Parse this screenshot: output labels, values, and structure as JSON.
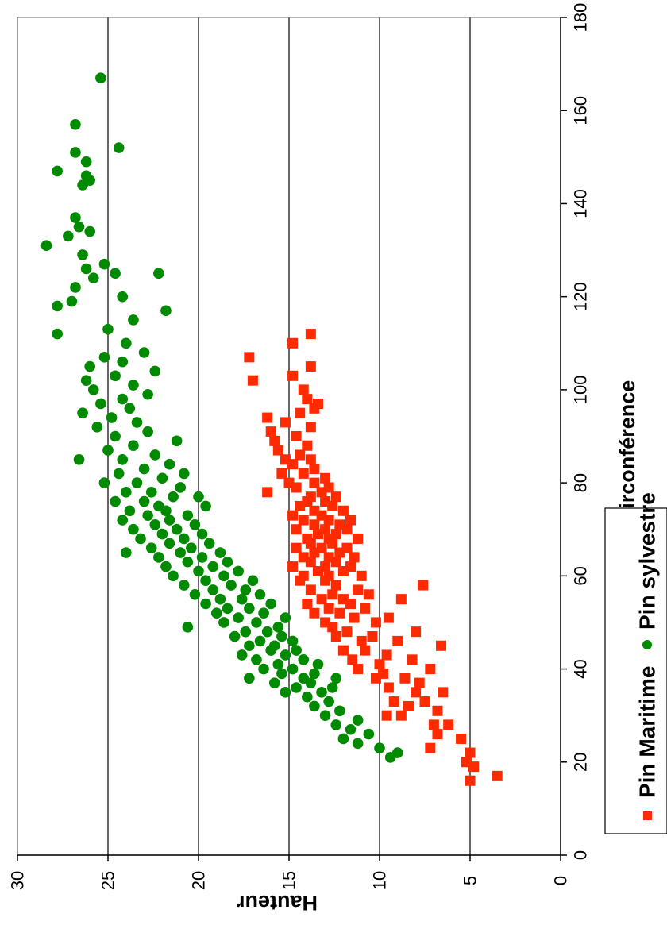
{
  "chart_data": {
    "type": "scatter",
    "orientation": "rotated-90-clockwise",
    "xlabel": "Circonférence",
    "ylabel": "Hauteur",
    "xlim": [
      0,
      180
    ],
    "ylim": [
      0,
      30
    ],
    "x_ticks": [
      0,
      20,
      40,
      60,
      80,
      100,
      120,
      140,
      160,
      180
    ],
    "y_ticks": [
      0,
      5,
      10,
      15,
      20,
      25,
      30
    ],
    "grid": "horizontal-value-lines",
    "legend_position": "right",
    "series": [
      {
        "name": "Pin Maritime",
        "marker": "square",
        "color": "#ff2a00",
        "points": [
          [
            16,
            5.0
          ],
          [
            17,
            3.5
          ],
          [
            19,
            4.8
          ],
          [
            20,
            5.2
          ],
          [
            22,
            5.0
          ],
          [
            23,
            7.2
          ],
          [
            25,
            5.5
          ],
          [
            26,
            6.8
          ],
          [
            28,
            6.2
          ],
          [
            28,
            7.0
          ],
          [
            30,
            8.8
          ],
          [
            30,
            9.6
          ],
          [
            31,
            6.8
          ],
          [
            32,
            8.4
          ],
          [
            33,
            9.2
          ],
          [
            33,
            7.5
          ],
          [
            35,
            6.5
          ],
          [
            35,
            8.0
          ],
          [
            36,
            9.5
          ],
          [
            37,
            7.8
          ],
          [
            38,
            10.2
          ],
          [
            38,
            8.6
          ],
          [
            39,
            9.8
          ],
          [
            40,
            11.2
          ],
          [
            40,
            7.2
          ],
          [
            41,
            10.0
          ],
          [
            42,
            8.2
          ],
          [
            42,
            11.5
          ],
          [
            43,
            9.6
          ],
          [
            44,
            10.8
          ],
          [
            44,
            12.0
          ],
          [
            45,
            6.6
          ],
          [
            46,
            9.0
          ],
          [
            46,
            11.0
          ],
          [
            47,
            12.4
          ],
          [
            47,
            10.4
          ],
          [
            48,
            8.0
          ],
          [
            48,
            11.8
          ],
          [
            49,
            12.6
          ],
          [
            50,
            10.2
          ],
          [
            50,
            13.0
          ],
          [
            51,
            9.5
          ],
          [
            51,
            11.4
          ],
          [
            52,
            12.2
          ],
          [
            52,
            13.6
          ],
          [
            53,
            10.8
          ],
          [
            53,
            12.8
          ],
          [
            54,
            11.6
          ],
          [
            54,
            14.0
          ],
          [
            55,
            8.8
          ],
          [
            55,
            12.0
          ],
          [
            55,
            13.2
          ],
          [
            56,
            10.6
          ],
          [
            56,
            12.6
          ],
          [
            57,
            11.2
          ],
          [
            57,
            13.8
          ],
          [
            58,
            12.4
          ],
          [
            58,
            7.6
          ],
          [
            59,
            13.0
          ],
          [
            59,
            14.4
          ],
          [
            60,
            11.0
          ],
          [
            60,
            12.8
          ],
          [
            60,
            14.2
          ],
          [
            61,
            12.0
          ],
          [
            61,
            13.4
          ],
          [
            62,
            11.6
          ],
          [
            62,
            13.0
          ],
          [
            62,
            14.8
          ],
          [
            63,
            12.4
          ],
          [
            63,
            13.8
          ],
          [
            64,
            11.4
          ],
          [
            64,
            12.8
          ],
          [
            64,
            14.2
          ],
          [
            65,
            12.2
          ],
          [
            65,
            13.6
          ],
          [
            66,
            11.8
          ],
          [
            66,
            13.2
          ],
          [
            66,
            14.6
          ],
          [
            67,
            12.6
          ],
          [
            67,
            13.8
          ],
          [
            68,
            11.2
          ],
          [
            68,
            12.8
          ],
          [
            68,
            14.0
          ],
          [
            69,
            12.4
          ],
          [
            69,
            13.4
          ],
          [
            70,
            11.8
          ],
          [
            70,
            13.0
          ],
          [
            70,
            14.6
          ],
          [
            71,
            12.2
          ],
          [
            71,
            13.6
          ],
          [
            72,
            11.6
          ],
          [
            72,
            12.8
          ],
          [
            72,
            14.2
          ],
          [
            73,
            13.2
          ],
          [
            73,
            14.8
          ],
          [
            74,
            12.0
          ],
          [
            74,
            13.6
          ],
          [
            75,
            12.6
          ],
          [
            75,
            14.4
          ],
          [
            76,
            13.0
          ],
          [
            76,
            14.0
          ],
          [
            77,
            12.4
          ],
          [
            77,
            13.8
          ],
          [
            78,
            13.2
          ],
          [
            78,
            16.2
          ],
          [
            79,
            12.8
          ],
          [
            79,
            14.6
          ],
          [
            80,
            13.6
          ],
          [
            80,
            15.0
          ],
          [
            81,
            13.0
          ],
          [
            82,
            14.2
          ],
          [
            82,
            15.4
          ],
          [
            83,
            13.6
          ],
          [
            84,
            14.8
          ],
          [
            85,
            15.2
          ],
          [
            85,
            13.8
          ],
          [
            86,
            14.4
          ],
          [
            87,
            15.6
          ],
          [
            88,
            14.0
          ],
          [
            89,
            15.8
          ],
          [
            90,
            14.6
          ],
          [
            91,
            16.0
          ],
          [
            92,
            13.8
          ],
          [
            93,
            15.2
          ],
          [
            94,
            16.2
          ],
          [
            95,
            14.4
          ],
          [
            96,
            13.6
          ],
          [
            97,
            13.4
          ],
          [
            98,
            14.0
          ],
          [
            100,
            14.2
          ],
          [
            102,
            17.0
          ],
          [
            103,
            14.8
          ],
          [
            105,
            13.8
          ],
          [
            107,
            17.2
          ],
          [
            110,
            14.8
          ],
          [
            112,
            13.8
          ]
        ]
      },
      {
        "name": "Pin sylvestre",
        "marker": "circle",
        "color": "#008a00",
        "points": [
          [
            21,
            9.4
          ],
          [
            22,
            9.0
          ],
          [
            23,
            10.0
          ],
          [
            24,
            11.2
          ],
          [
            25,
            12.0
          ],
          [
            26,
            10.6
          ],
          [
            27,
            11.6
          ],
          [
            28,
            12.4
          ],
          [
            29,
            11.2
          ],
          [
            30,
            13.0
          ],
          [
            31,
            12.2
          ],
          [
            32,
            13.6
          ],
          [
            33,
            12.8
          ],
          [
            34,
            14.0
          ],
          [
            35,
            13.2
          ],
          [
            35,
            15.2
          ],
          [
            36,
            12.6
          ],
          [
            36,
            14.6
          ],
          [
            37,
            13.8
          ],
          [
            37,
            15.8
          ],
          [
            38,
            12.4
          ],
          [
            38,
            14.2
          ],
          [
            38,
            17.2
          ],
          [
            39,
            13.6
          ],
          [
            39,
            15.4
          ],
          [
            40,
            14.8
          ],
          [
            40,
            16.4
          ],
          [
            41,
            13.4
          ],
          [
            41,
            15.6
          ],
          [
            42,
            14.2
          ],
          [
            42,
            16.8
          ],
          [
            43,
            15.2
          ],
          [
            43,
            17.6
          ],
          [
            44,
            14.6
          ],
          [
            44,
            16.0
          ],
          [
            45,
            15.8
          ],
          [
            45,
            17.2
          ],
          [
            46,
            14.8
          ],
          [
            46,
            16.6
          ],
          [
            47,
            15.4
          ],
          [
            47,
            18.0
          ],
          [
            48,
            16.2
          ],
          [
            48,
            17.4
          ],
          [
            49,
            15.6
          ],
          [
            49,
            20.6
          ],
          [
            50,
            16.8
          ],
          [
            50,
            18.6
          ],
          [
            51,
            15.2
          ],
          [
            51,
            17.8
          ],
          [
            52,
            16.4
          ],
          [
            52,
            19.0
          ],
          [
            53,
            17.2
          ],
          [
            53,
            18.4
          ],
          [
            54,
            16.0
          ],
          [
            54,
            19.6
          ],
          [
            55,
            17.6
          ],
          [
            55,
            18.8
          ],
          [
            56,
            16.6
          ],
          [
            56,
            20.2
          ],
          [
            57,
            17.4
          ],
          [
            57,
            19.2
          ],
          [
            58,
            18.2
          ],
          [
            58,
            20.8
          ],
          [
            59,
            17.0
          ],
          [
            59,
            19.6
          ],
          [
            60,
            18.6
          ],
          [
            60,
            21.4
          ],
          [
            61,
            17.8
          ],
          [
            61,
            20.0
          ],
          [
            62,
            19.2
          ],
          [
            62,
            21.8
          ],
          [
            63,
            18.4
          ],
          [
            63,
            20.6
          ],
          [
            64,
            19.8
          ],
          [
            64,
            22.2
          ],
          [
            65,
            18.8
          ],
          [
            65,
            21.0
          ],
          [
            65,
            24.0
          ],
          [
            66,
            20.4
          ],
          [
            66,
            22.6
          ],
          [
            67,
            19.4
          ],
          [
            67,
            21.6
          ],
          [
            68,
            20.8
          ],
          [
            68,
            23.2
          ],
          [
            69,
            19.8
          ],
          [
            69,
            22.0
          ],
          [
            70,
            21.2
          ],
          [
            70,
            23.6
          ],
          [
            71,
            20.2
          ],
          [
            71,
            22.4
          ],
          [
            72,
            21.6
          ],
          [
            72,
            24.2
          ],
          [
            73,
            20.6
          ],
          [
            73,
            22.8
          ],
          [
            74,
            21.8
          ],
          [
            74,
            23.8
          ],
          [
            75,
            19.6
          ],
          [
            75,
            22.2
          ],
          [
            76,
            23.0
          ],
          [
            76,
            24.6
          ],
          [
            77,
            21.4
          ],
          [
            77,
            20.0
          ],
          [
            78,
            22.6
          ],
          [
            78,
            24.0
          ],
          [
            79,
            21.0
          ],
          [
            80,
            23.4
          ],
          [
            80,
            25.2
          ],
          [
            81,
            22.0
          ],
          [
            82,
            24.4
          ],
          [
            82,
            20.8
          ],
          [
            83,
            23.0
          ],
          [
            84,
            21.6
          ],
          [
            85,
            24.2
          ],
          [
            85,
            26.6
          ],
          [
            86,
            22.4
          ],
          [
            87,
            25.0
          ],
          [
            88,
            23.6
          ],
          [
            89,
            21.2
          ],
          [
            90,
            24.6
          ],
          [
            91,
            22.8
          ],
          [
            92,
            25.6
          ],
          [
            93,
            23.4
          ],
          [
            94,
            24.8
          ],
          [
            95,
            26.4
          ],
          [
            96,
            23.8
          ],
          [
            97,
            25.4
          ],
          [
            98,
            24.2
          ],
          [
            99,
            22.8
          ],
          [
            100,
            25.8
          ],
          [
            101,
            23.6
          ],
          [
            102,
            26.2
          ],
          [
            103,
            24.6
          ],
          [
            104,
            22.4
          ],
          [
            105,
            26.0
          ],
          [
            106,
            24.2
          ],
          [
            107,
            25.2
          ],
          [
            108,
            23.0
          ],
          [
            110,
            24.0
          ],
          [
            112,
            27.8
          ],
          [
            113,
            25.0
          ],
          [
            115,
            23.6
          ],
          [
            117,
            21.8
          ],
          [
            118,
            27.8
          ],
          [
            119,
            27.0
          ],
          [
            120,
            24.2
          ],
          [
            122,
            26.8
          ],
          [
            124,
            25.8
          ],
          [
            125,
            22.2
          ],
          [
            125,
            24.6
          ],
          [
            126,
            26.2
          ],
          [
            127,
            25.2
          ],
          [
            129,
            26.4
          ],
          [
            131,
            28.4
          ],
          [
            133,
            27.2
          ],
          [
            134,
            26.0
          ],
          [
            135,
            26.6
          ],
          [
            137,
            26.8
          ],
          [
            144,
            26.4
          ],
          [
            145,
            26.0
          ],
          [
            146,
            26.2
          ],
          [
            147,
            27.8
          ],
          [
            149,
            26.2
          ],
          [
            151,
            26.8
          ],
          [
            152,
            24.4
          ],
          [
            157,
            26.8
          ],
          [
            167,
            25.4
          ]
        ]
      }
    ]
  }
}
